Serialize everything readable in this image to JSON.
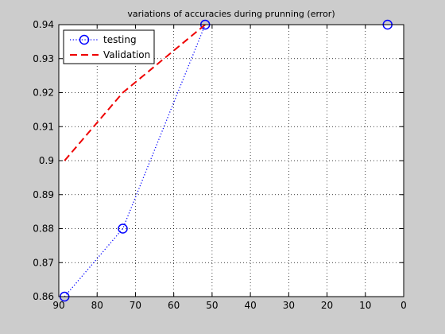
{
  "chart_data": {
    "type": "line",
    "title": "variations of accuracies during prunning (error)",
    "xlabel": "",
    "ylabel": "",
    "xlim": [
      90,
      0
    ],
    "x_reversed": true,
    "ylim": [
      0.86,
      0.94
    ],
    "xticks": [
      90,
      80,
      70,
      60,
      50,
      40,
      30,
      20,
      10,
      0
    ],
    "yticks": [
      0.86,
      0.87,
      0.88,
      0.89,
      0.9,
      0.91,
      0.92,
      0.93,
      0.94
    ],
    "ytick_labels": [
      "0.86",
      "0.87",
      "0.88",
      "0.89",
      "0.9",
      "0.91",
      "0.92",
      "0.93",
      "0.94"
    ],
    "grid": true,
    "legend": "top-left",
    "series": [
      {
        "name": "testing",
        "color": "#0000ff",
        "line_style": "dotted",
        "marker": "circle",
        "x": [
          88.5,
          73.3,
          51.8,
          4.2
        ],
        "y": [
          0.86,
          0.88,
          0.94,
          0.94
        ],
        "line_points": 3
      },
      {
        "name": "Validation",
        "color": "#ee0000",
        "line_style": "dashed",
        "marker": "none",
        "x": [
          88.5,
          73.3,
          51.8
        ],
        "y": [
          0.9,
          0.92,
          0.94
        ]
      }
    ]
  }
}
